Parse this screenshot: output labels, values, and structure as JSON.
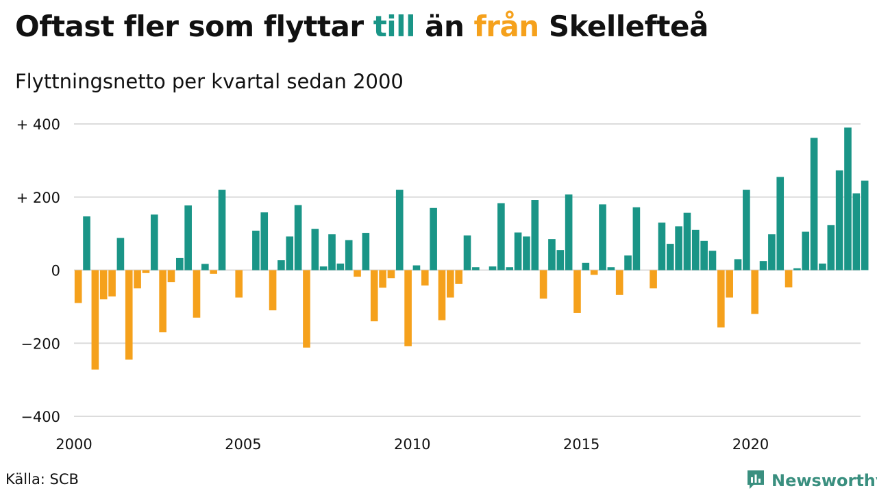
{
  "title": {
    "part1": "Oftast fler som flyttar ",
    "word_in": "till",
    "part2": " än ",
    "word_out": "från",
    "part3": " Skellefteå"
  },
  "subtitle": "Flyttningsnetto per kvartal sedan 2000",
  "source": "Källa: SCB",
  "brand": {
    "name": "Newsworthy",
    "icon": "bar-chart-logo-icon"
  },
  "colors": {
    "positive": "#1a9587",
    "negative": "#f5a11c",
    "grid": "#dcdcdc",
    "brand": "#3a8f7f"
  },
  "chart_data": {
    "type": "bar",
    "x_start": "2000-Q1",
    "xlim": [
      2000,
      2023.25
    ],
    "ylim": [
      -400,
      400
    ],
    "yticks": [
      {
        "value": 400,
        "label": "+ 400"
      },
      {
        "value": 200,
        "label": "+ 200"
      },
      {
        "value": 0,
        "label": "0"
      },
      {
        "value": -200,
        "label": "−200"
      },
      {
        "value": -400,
        "label": "−400"
      }
    ],
    "xticks": [
      {
        "value": 2000,
        "label": "2000"
      },
      {
        "value": 2005,
        "label": "2005"
      },
      {
        "value": 2010,
        "label": "2010"
      },
      {
        "value": 2015,
        "label": "2015"
      },
      {
        "value": 2020,
        "label": "2020"
      }
    ],
    "grid": true,
    "values": [
      -90,
      147,
      -272,
      -80,
      -72,
      88,
      -245,
      -50,
      -8,
      152,
      -170,
      -33,
      33,
      177,
      -130,
      17,
      -10,
      220,
      0,
      -75,
      0,
      108,
      158,
      -110,
      27,
      92,
      178,
      -212,
      113,
      10,
      98,
      18,
      82,
      -18,
      102,
      -140,
      -48,
      -22,
      220,
      -208,
      13,
      -42,
      170,
      -137,
      -75,
      -38,
      95,
      8,
      0,
      10,
      183,
      8,
      103,
      92,
      192,
      -78,
      85,
      55,
      207,
      -117,
      20,
      -13,
      180,
      8,
      -68,
      40,
      172,
      0,
      -50,
      130,
      72,
      120,
      157,
      110,
      80,
      53,
      -157,
      -75,
      30,
      220,
      -120,
      25,
      98,
      255,
      -47,
      5,
      105,
      362,
      18,
      123,
      273,
      390,
      210,
      245
    ]
  }
}
